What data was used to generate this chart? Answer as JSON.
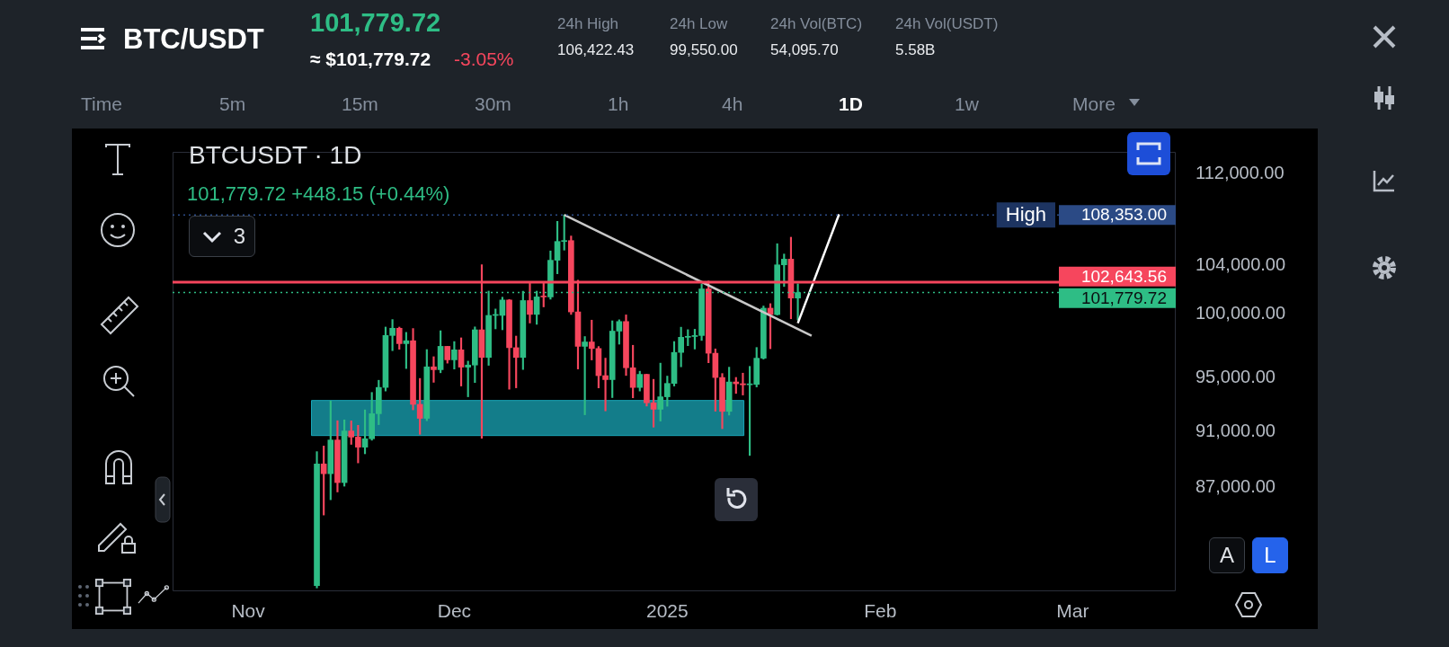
{
  "chart_data": {
    "type": "candlestick",
    "title": "BTC/USDT",
    "subtitle": "BTCUSDT · 1D",
    "annotations": [
      "101,779.72",
      "≈ $101,779.72",
      "-3.05%",
      "24h High",
      "106,422.43",
      "24h Low",
      "99,550.00",
      "24h Vol(BTC)",
      "54,095.70",
      "24h Vol(USDT)",
      "5.58B",
      "Time",
      "5m",
      "15m",
      "30m",
      "1h",
      "4h",
      "1D",
      "1w",
      "More",
      "101,779.72  +448.15 (+0.44%)",
      "3",
      "A",
      "L",
      {
        "text": "High",
        "y": 108353
      }
    ],
    "log": "y",
    "legend": false,
    "xlim": [
      "2024-10-21",
      "2025-03-16"
    ],
    "xticks": [
      {
        "value": "2024-11-01",
        "label": "Nov"
      },
      {
        "value": "2024-12-01",
        "label": "Dec"
      },
      {
        "value": "2025-01-01",
        "label": "2025"
      },
      {
        "value": "2025-02-01",
        "label": "Feb"
      },
      {
        "value": "2025-03-01",
        "label": "Mar"
      }
    ],
    "ylim": [
      80000,
      114000
    ],
    "yticks": [
      {
        "value": 87000,
        "label": "87,000.00"
      },
      {
        "value": 91000,
        "label": "91,000.00"
      },
      {
        "value": 95000,
        "label": "95,000.00"
      },
      {
        "value": 100000,
        "label": "100,000.00"
      },
      {
        "value": 104000,
        "label": "104,000.00"
      },
      {
        "value": 112000,
        "label": "112,000.00"
      }
    ],
    "ref_lines": [
      {
        "axis": "y",
        "value": 108353,
        "label": "108,353.00",
        "color": "#2b4a85",
        "line_style": "dotted"
      },
      {
        "axis": "y",
        "value": 102643.56,
        "label": "102,643.56",
        "color": "#f6465d",
        "line_style": "solid"
      },
      {
        "axis": "y",
        "value": 101779.72,
        "label": "101,779.72",
        "color": "#2ebd85",
        "line_style": "dotted"
      }
    ],
    "bands": [
      {
        "axis": "y",
        "from": 90700,
        "to": 93300,
        "color": "#1aa7b8"
      }
    ],
    "series": [
      {
        "type": "candlestick",
        "x": [
          "2024-11-11",
          "2024-11-12",
          "2024-11-13",
          "2024-11-14",
          "2024-11-15",
          "2024-11-16",
          "2024-11-17",
          "2024-11-18",
          "2024-11-19",
          "2024-11-20",
          "2024-11-21",
          "2024-11-22",
          "2024-11-23",
          "2024-11-24",
          "2024-11-25",
          "2024-11-26",
          "2024-11-27",
          "2024-11-28",
          "2024-11-29",
          "2024-11-30",
          "2024-12-01",
          "2024-12-02",
          "2024-12-03",
          "2024-12-04",
          "2024-12-05",
          "2024-12-06",
          "2024-12-07",
          "2024-12-08",
          "2024-12-09",
          "2024-12-10",
          "2024-12-11",
          "2024-12-12",
          "2024-12-13",
          "2024-12-14",
          "2024-12-15",
          "2024-12-16",
          "2024-12-17",
          "2024-12-18",
          "2024-12-19",
          "2024-12-20",
          "2024-12-21",
          "2024-12-22",
          "2024-12-23",
          "2024-12-24",
          "2024-12-25",
          "2024-12-26",
          "2024-12-27",
          "2024-12-28",
          "2024-12-29",
          "2024-12-30",
          "2024-12-31",
          "2025-01-01",
          "2025-01-02",
          "2025-01-03",
          "2025-01-04",
          "2025-01-05",
          "2025-01-06",
          "2025-01-07",
          "2025-01-08",
          "2025-01-09",
          "2025-01-10",
          "2025-01-11",
          "2025-01-12",
          "2025-01-13",
          "2025-01-14",
          "2025-01-15",
          "2025-01-16",
          "2025-01-17",
          "2025-01-18",
          "2025-01-19",
          "2025-01-20"
        ],
        "ohlc": [
          [
            80370,
            89530,
            80216,
            88648
          ],
          [
            88648,
            89940,
            85072,
            87952
          ],
          [
            87952,
            93265,
            86127,
            90375
          ],
          [
            90375,
            91790,
            86668,
            87325
          ],
          [
            87325,
            91850,
            87073,
            91032
          ],
          [
            91032,
            91779,
            90057,
            90586
          ],
          [
            90587,
            91449,
            88722,
            89855
          ],
          [
            89855,
            92594,
            89376,
            90464
          ],
          [
            90465,
            93905,
            90357,
            92310
          ],
          [
            92311,
            94831,
            91500,
            94286
          ],
          [
            94287,
            98988,
            94013,
            98318
          ],
          [
            98318,
            99588,
            97122,
            98893
          ],
          [
            98893,
            98984,
            97232,
            97673
          ],
          [
            97673,
            98564,
            95734,
            97901
          ],
          [
            97901,
            98871,
            92600,
            93010
          ],
          [
            93010,
            94973,
            90791,
            91966
          ],
          [
            91966,
            97208,
            91792,
            95863
          ],
          [
            95864,
            96650,
            94677,
            95643
          ],
          [
            95644,
            98693,
            95407,
            97461
          ],
          [
            97461,
            97463,
            96150,
            96407
          ],
          [
            96407,
            97836,
            95693,
            97185
          ],
          [
            97185,
            98130,
            94395,
            95840
          ],
          [
            95840,
            96305,
            93578,
            96002
          ],
          [
            96002,
            99000,
            94660,
            98768
          ],
          [
            98768,
            104088,
            90500,
            96593
          ],
          [
            96593,
            101898,
            95981,
            99920
          ],
          [
            99921,
            100439,
            98844,
            99924
          ],
          [
            99924,
            101400,
            98771,
            101170
          ],
          [
            101170,
            101215,
            94150,
            97356
          ],
          [
            97356,
            98270,
            94256,
            96593
          ],
          [
            96593,
            101888,
            95659,
            101125
          ],
          [
            101125,
            102540,
            99311,
            100004
          ],
          [
            100004,
            101895,
            99206,
            101424
          ],
          [
            101424,
            102650,
            100610,
            101420
          ],
          [
            101420,
            105250,
            101237,
            104463
          ],
          [
            104463,
            107793,
            103333,
            106058
          ],
          [
            106058,
            108353,
            105321,
            106133
          ],
          [
            106133,
            106524,
            100000,
            100204
          ],
          [
            100204,
            102800,
            95700,
            97461
          ],
          [
            97461,
            98233,
            92232,
            97805
          ],
          [
            97805,
            99540,
            96398,
            97291
          ],
          [
            97292,
            97448,
            94250,
            95186
          ],
          [
            95186,
            96538,
            92520,
            94881
          ],
          [
            94881,
            99487,
            93515,
            98663
          ],
          [
            98663,
            99569,
            97632,
            99430
          ],
          [
            99430,
            99963,
            95200,
            95792
          ],
          [
            95792,
            97544,
            93500,
            94284
          ],
          [
            94284,
            95525,
            94014,
            95286
          ],
          [
            95286,
            95300,
            92881,
            93124
          ],
          [
            93124,
            94903,
            91317,
            92643
          ],
          [
            92643,
            96150,
            91765,
            93576
          ],
          [
            93576,
            95151,
            92867,
            94591
          ],
          [
            94592,
            97839,
            94392,
            96984
          ],
          [
            96985,
            98976,
            95866,
            98174
          ],
          [
            98174,
            98778,
            97514,
            98236
          ],
          [
            98236,
            98813,
            97250,
            98314
          ],
          [
            98314,
            102482,
            97926,
            102078
          ],
          [
            102078,
            102724,
            96181,
            96922
          ],
          [
            96922,
            97258,
            92500,
            95043
          ],
          [
            95044,
            95349,
            91203,
            92484
          ],
          [
            92485,
            95837,
            92207,
            94701
          ],
          [
            94702,
            95050,
            93831,
            94566
          ],
          [
            94566,
            95378,
            93712,
            94488
          ],
          [
            94489,
            95900,
            89256,
            94516
          ],
          [
            94517,
            97371,
            94322,
            96534
          ],
          [
            96535,
            100681,
            96464,
            100504
          ],
          [
            100505,
            100873,
            97275,
            99987
          ],
          [
            99988,
            105865,
            99951,
            104077
          ],
          [
            104078,
            104988,
            102277,
            104556
          ],
          [
            104556,
            106422,
            99651,
            101331
          ],
          [
            101331.57,
            102500,
            99550,
            101779.72
          ]
        ],
        "colors": [
          "#2ebd85",
          "#f6465d",
          "#2ebd85",
          "#f6465d",
          "#2ebd85",
          "#f6465d",
          "#f6465d",
          "#2ebd85",
          "#2ebd85",
          "#2ebd85",
          "#2ebd85",
          "#2ebd85",
          "#f6465d",
          "#2ebd85",
          "#f6465d",
          "#f6465d",
          "#2ebd85",
          "#f6465d",
          "#2ebd85",
          "#f6465d",
          "#2ebd85",
          "#f6465d",
          "#2ebd85",
          "#2ebd85",
          "#f6465d",
          "#2ebd85",
          "#2ebd85",
          "#2ebd85",
          "#f6465d",
          "#f6465d",
          "#2ebd85",
          "#f6465d",
          "#2ebd85",
          "#f6465d",
          "#2ebd85",
          "#2ebd85",
          "#2ebd85",
          "#f6465d",
          "#f6465d",
          "#2ebd85",
          "#f6465d",
          "#f6465d",
          "#f6465d",
          "#2ebd85",
          "#2ebd85",
          "#f6465d",
          "#f6465d",
          "#2ebd85",
          "#f6465d",
          "#f6465d",
          "#2ebd85",
          "#2ebd85",
          "#2ebd85",
          "#2ebd85",
          "#2ebd85",
          "#2ebd85",
          "#2ebd85",
          "#f6465d",
          "#f6465d",
          "#f6465d",
          "#2ebd85",
          "#f6465d",
          "#f6465d",
          "#2ebd85",
          "#2ebd85",
          "#2ebd85",
          "#f6465d",
          "#2ebd85",
          "#2ebd85",
          "#f6465d",
          "#2ebd85"
        ]
      },
      {
        "type": "line",
        "x": [
          "2024-12-17",
          "2025-01-22"
        ],
        "values": [
          108353,
          98300
        ],
        "color": "#c8c8c8",
        "marker": "none",
        "line_style": "solid"
      },
      {
        "type": "line",
        "x": [
          "2025-01-20",
          "2025-01-26"
        ],
        "values": [
          99300,
          108400
        ],
        "color": "#ffffff",
        "marker": "none",
        "line_style": "solid"
      }
    ]
  }
}
